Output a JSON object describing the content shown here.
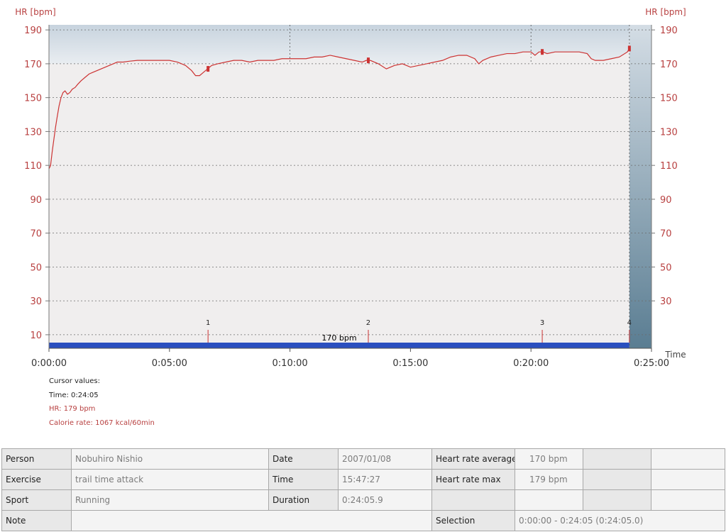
{
  "chart_data": {
    "type": "line",
    "ylabel_left": "HR [bpm]",
    "ylabel_right": "HR [bpm]",
    "xlabel": "Time",
    "xlim": [
      0,
      1500
    ],
    "ylim": [
      2,
      193
    ],
    "yticks": [
      10,
      30,
      50,
      70,
      90,
      110,
      130,
      150,
      170,
      190
    ],
    "yticks_right": [
      30,
      50,
      70,
      90,
      110,
      130,
      150,
      170,
      190
    ],
    "xticks": [
      {
        "t": 0,
        "label": "0:00:00"
      },
      {
        "t": 300,
        "label": "0:05:00"
      },
      {
        "t": 600,
        "label": "0:10:00"
      },
      {
        "t": 900,
        "label": "0:15:00"
      },
      {
        "t": 1200,
        "label": "0:20:00"
      },
      {
        "t": 1500,
        "label": "0:25:00"
      }
    ],
    "series": [
      {
        "color": "#cc3333",
        "x": [
          0,
          4,
          8,
          12,
          16,
          20,
          25,
          30,
          35,
          40,
          46,
          52,
          58,
          65,
          72,
          80,
          90,
          100,
          110,
          120,
          130,
          140,
          150,
          160,
          170,
          185,
          200,
          220,
          240,
          260,
          280,
          300,
          320,
          340,
          355,
          365,
          375,
          385,
          395,
          405,
          420,
          440,
          460,
          480,
          500,
          520,
          540,
          560,
          580,
          600,
          620,
          640,
          660,
          680,
          700,
          720,
          740,
          760,
          780,
          790,
          800,
          820,
          840,
          860,
          880,
          900,
          920,
          940,
          960,
          980,
          1000,
          1020,
          1040,
          1060,
          1070,
          1080,
          1100,
          1120,
          1140,
          1160,
          1180,
          1200,
          1210,
          1220,
          1230,
          1240,
          1260,
          1280,
          1300,
          1320,
          1340,
          1350,
          1360,
          1380,
          1400,
          1420,
          1440,
          1445
        ],
        "y": [
          108,
          110,
          118,
          125,
          132,
          138,
          145,
          150,
          153,
          154,
          152,
          153,
          155,
          156,
          158,
          160,
          162,
          164,
          165,
          166,
          167,
          168,
          169,
          170,
          171,
          171,
          171.5,
          172,
          172,
          172,
          172,
          172,
          171,
          169,
          166,
          163,
          163,
          165,
          167,
          169,
          170,
          171,
          172,
          172,
          171,
          172,
          172,
          172,
          173,
          173,
          173,
          173,
          174,
          174,
          175,
          174,
          173,
          172,
          171,
          172,
          172,
          170,
          167,
          169,
          170,
          168,
          169,
          170,
          171,
          172,
          174,
          175,
          175,
          173,
          170,
          172,
          174,
          175,
          176,
          176,
          177,
          177,
          175,
          177,
          177,
          176,
          177,
          177,
          177,
          177,
          176,
          173,
          172,
          172,
          173,
          174,
          177,
          179
        ]
      }
    ],
    "laps": [
      {
        "label": "1",
        "t": 396
      },
      {
        "label": "2",
        "t": 795
      },
      {
        "label": "3",
        "t": 1228
      },
      {
        "label": "4",
        "t": 1445
      }
    ],
    "hr_limits": [
      170,
      190
    ],
    "bar_label": "170 bpm",
    "vertical_markers": [
      600,
      1200,
      1445
    ],
    "grid": "dashed-horizontal"
  },
  "cursor": {
    "title": "Cursor values:",
    "time": "Time: 0:24:05",
    "hr": "HR: 179 bpm",
    "calorie": "Calorie rate: 1067 kcal/60min"
  },
  "info": {
    "person_label": "Person",
    "person": "Nobuhiro Nishio",
    "date_label": "Date",
    "date": "2007/01/08",
    "hr_avg_label": "Heart rate average",
    "hr_avg": "170 bpm",
    "exercise_label": "Exercise",
    "exercise": "trail time attack",
    "time_label": "Time",
    "time": "15:47:27",
    "hr_max_label": "Heart rate max",
    "hr_max": "179 bpm",
    "sport_label": "Sport",
    "sport": "Running",
    "duration_label": "Duration",
    "duration": "0:24:05.9",
    "note_label": "Note",
    "selection_label": "Selection",
    "selection": "0:00:00 - 0:24:05 (0:24:05.0)"
  },
  "colors": {
    "line": "#cc3333",
    "axis_text": "#b84040",
    "plot_bg": "#f0eeee",
    "bar": "#2a4fbf"
  }
}
